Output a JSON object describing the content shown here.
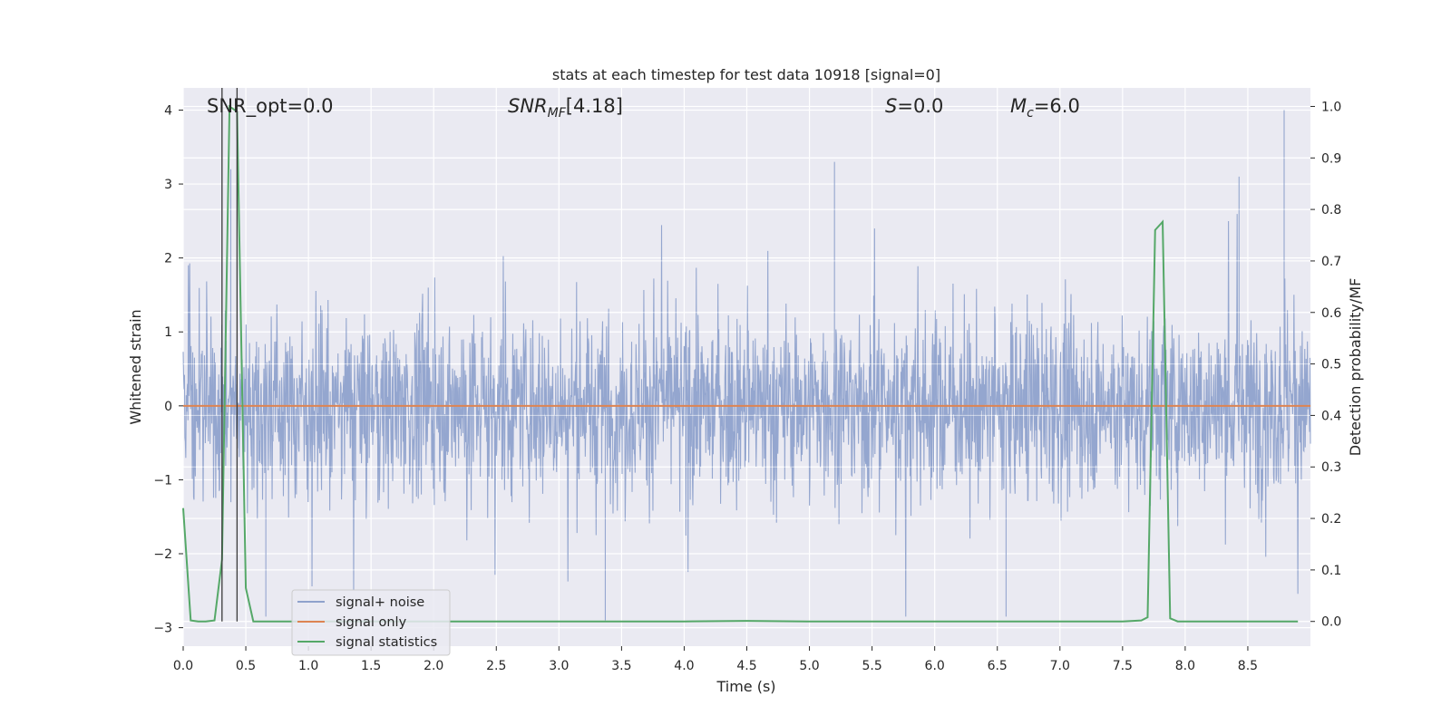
{
  "chart_data": {
    "type": "line",
    "title": "stats at each timestep for test data 10918 [signal=0]",
    "xlabel": "Time (s)",
    "ylabel": "Whitened strain",
    "y2label": "Detection probability/MF",
    "xlim": [
      0.0,
      9.0
    ],
    "ylim": [
      -3.25,
      4.3
    ],
    "y2lim": [
      -0.048,
      1.036
    ],
    "x_ticks": [
      "0.0",
      "0.5",
      "1.0",
      "1.5",
      "2.0",
      "2.5",
      "3.0",
      "3.5",
      "4.0",
      "4.5",
      "5.0",
      "5.5",
      "6.0",
      "6.5",
      "7.0",
      "7.5",
      "8.0",
      "8.5"
    ],
    "y_ticks": [
      "−3",
      "−2",
      "−1",
      "0",
      "1",
      "2",
      "3",
      "4"
    ],
    "y2_ticks": [
      "0.0",
      "0.1",
      "0.2",
      "0.3",
      "0.4",
      "0.5",
      "0.6",
      "0.7",
      "0.8",
      "0.9",
      "1.0"
    ],
    "grid": true,
    "legend_position": "lower-left",
    "annotations": {
      "snr_opt": "SNR_opt=0.0",
      "snr_mf": "[4.18]",
      "s": "=0.0",
      "mc": "=6.0"
    },
    "series": [
      {
        "name": "signal+ noise",
        "axis": "left",
        "color": "#8fa2cc",
        "noise_band": "approx. ±1.5 typical, peaks to +4.0 at t≈8.79 and −2.9 at t≈3.37"
      },
      {
        "name": "signal only",
        "axis": "left",
        "color": "#dd8452",
        "x": [
          0.0,
          9.0
        ],
        "y": [
          0.0,
          0.0
        ]
      },
      {
        "name": "signal statistics",
        "axis": "right",
        "color": "#55a868",
        "x": [
          0.0,
          0.06,
          0.12,
          0.18,
          0.25,
          0.31,
          0.37,
          0.43,
          0.5,
          0.56,
          0.62,
          1.0,
          2.0,
          3.0,
          4.0,
          4.5,
          5.0,
          6.0,
          7.0,
          7.5,
          7.65,
          7.7,
          7.76,
          7.82,
          7.88,
          7.94,
          8.0,
          8.5,
          8.9
        ],
        "y": [
          0.22,
          0.002,
          0.0,
          0.0,
          0.002,
          0.12,
          1.0,
          0.99,
          0.065,
          0.0,
          0.0,
          0.0,
          0.0,
          0.0,
          0.0,
          0.001,
          0.0,
          0.0,
          0.0,
          0.0,
          0.002,
          0.008,
          0.76,
          0.776,
          0.006,
          0.0,
          0.0,
          0.0,
          0.0
        ]
      }
    ],
    "vertical_markers": {
      "color": "#3a3a3a",
      "x": [
        0.31,
        0.43
      ]
    },
    "legend": [
      "signal+ noise",
      "signal only",
      "signal statistics"
    ],
    "colors": {
      "plot_bg": "#eaeaf2",
      "grid": "#ffffff",
      "noise": "#8fa2cc",
      "signal": "#dd8452",
      "stat": "#55a868",
      "marker": "#3a3a3a"
    }
  }
}
